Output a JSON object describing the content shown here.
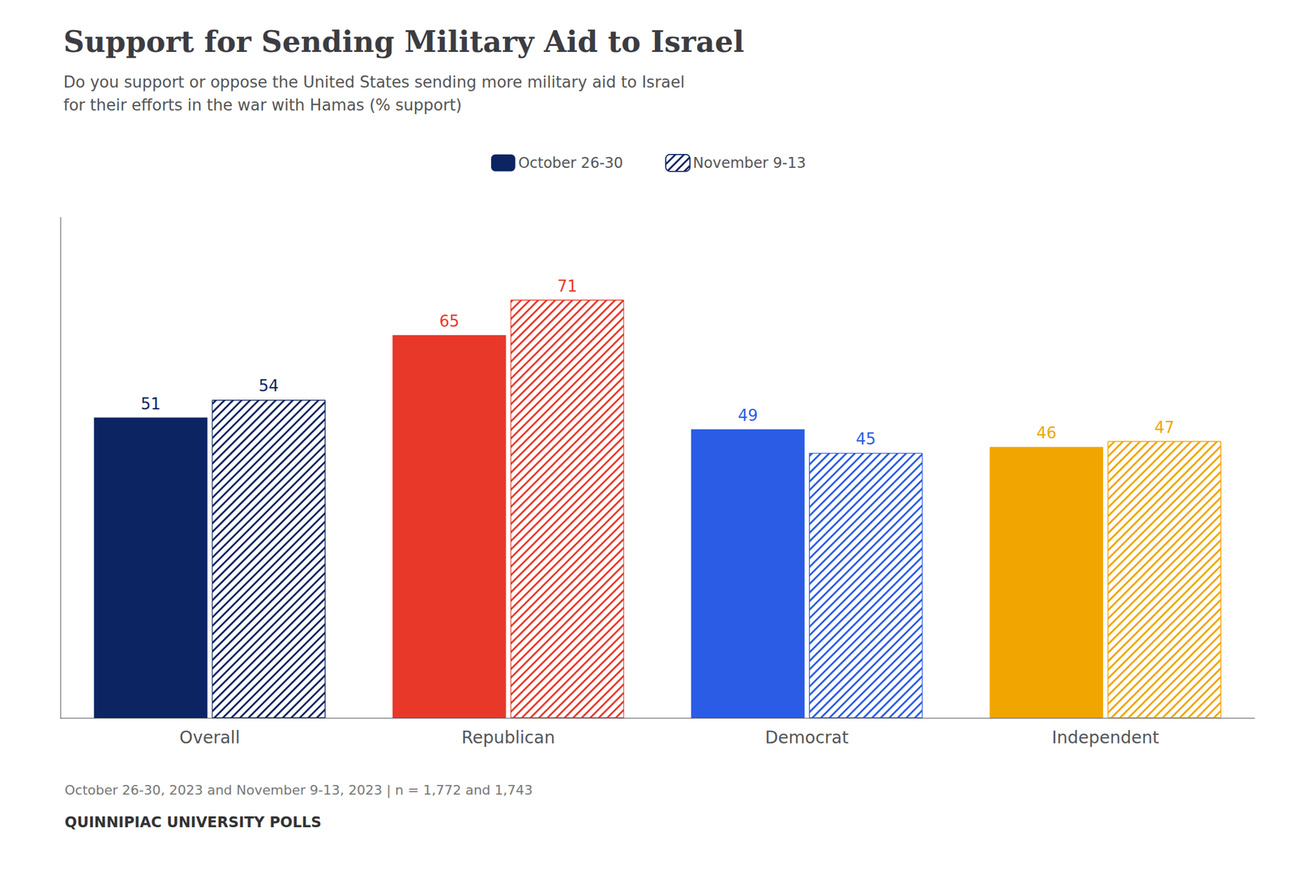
{
  "chart_data": {
    "type": "bar",
    "title": "Support for Sending Military Aid to Israel",
    "subtitle": [
      "Do you support or oppose the United States sending more military aid to Israel",
      "for their efforts in the war with Hamas (% support)"
    ],
    "annotations": [
      "October 26-30, 2023 and November 9-13, 2023 | n = 1,772 and 1,743",
      "QUINNIPIAC UNIVERSITY POLLS"
    ],
    "categories": [
      "Overall",
      "Republican",
      "Democrat",
      "Independent"
    ],
    "series": [
      {
        "name": "October 26-30",
        "color": "#0d2463",
        "colors": [
          "#0d2463",
          "#e8382a",
          "#2b5ce6",
          "#f0a500"
        ],
        "values": [
          51,
          65,
          49,
          46
        ]
      },
      {
        "name": "November 9-13",
        "color": "#0d2463",
        "colors": [
          "#0d2463",
          "#e8382a",
          "#2b5ce6",
          "#f0a500"
        ],
        "values": [
          54,
          71,
          45,
          47
        ]
      }
    ],
    "ylim": [
      0,
      85
    ],
    "grid": false,
    "legend": "top",
    "data_labels": true,
    "tick_labels": "x"
  }
}
